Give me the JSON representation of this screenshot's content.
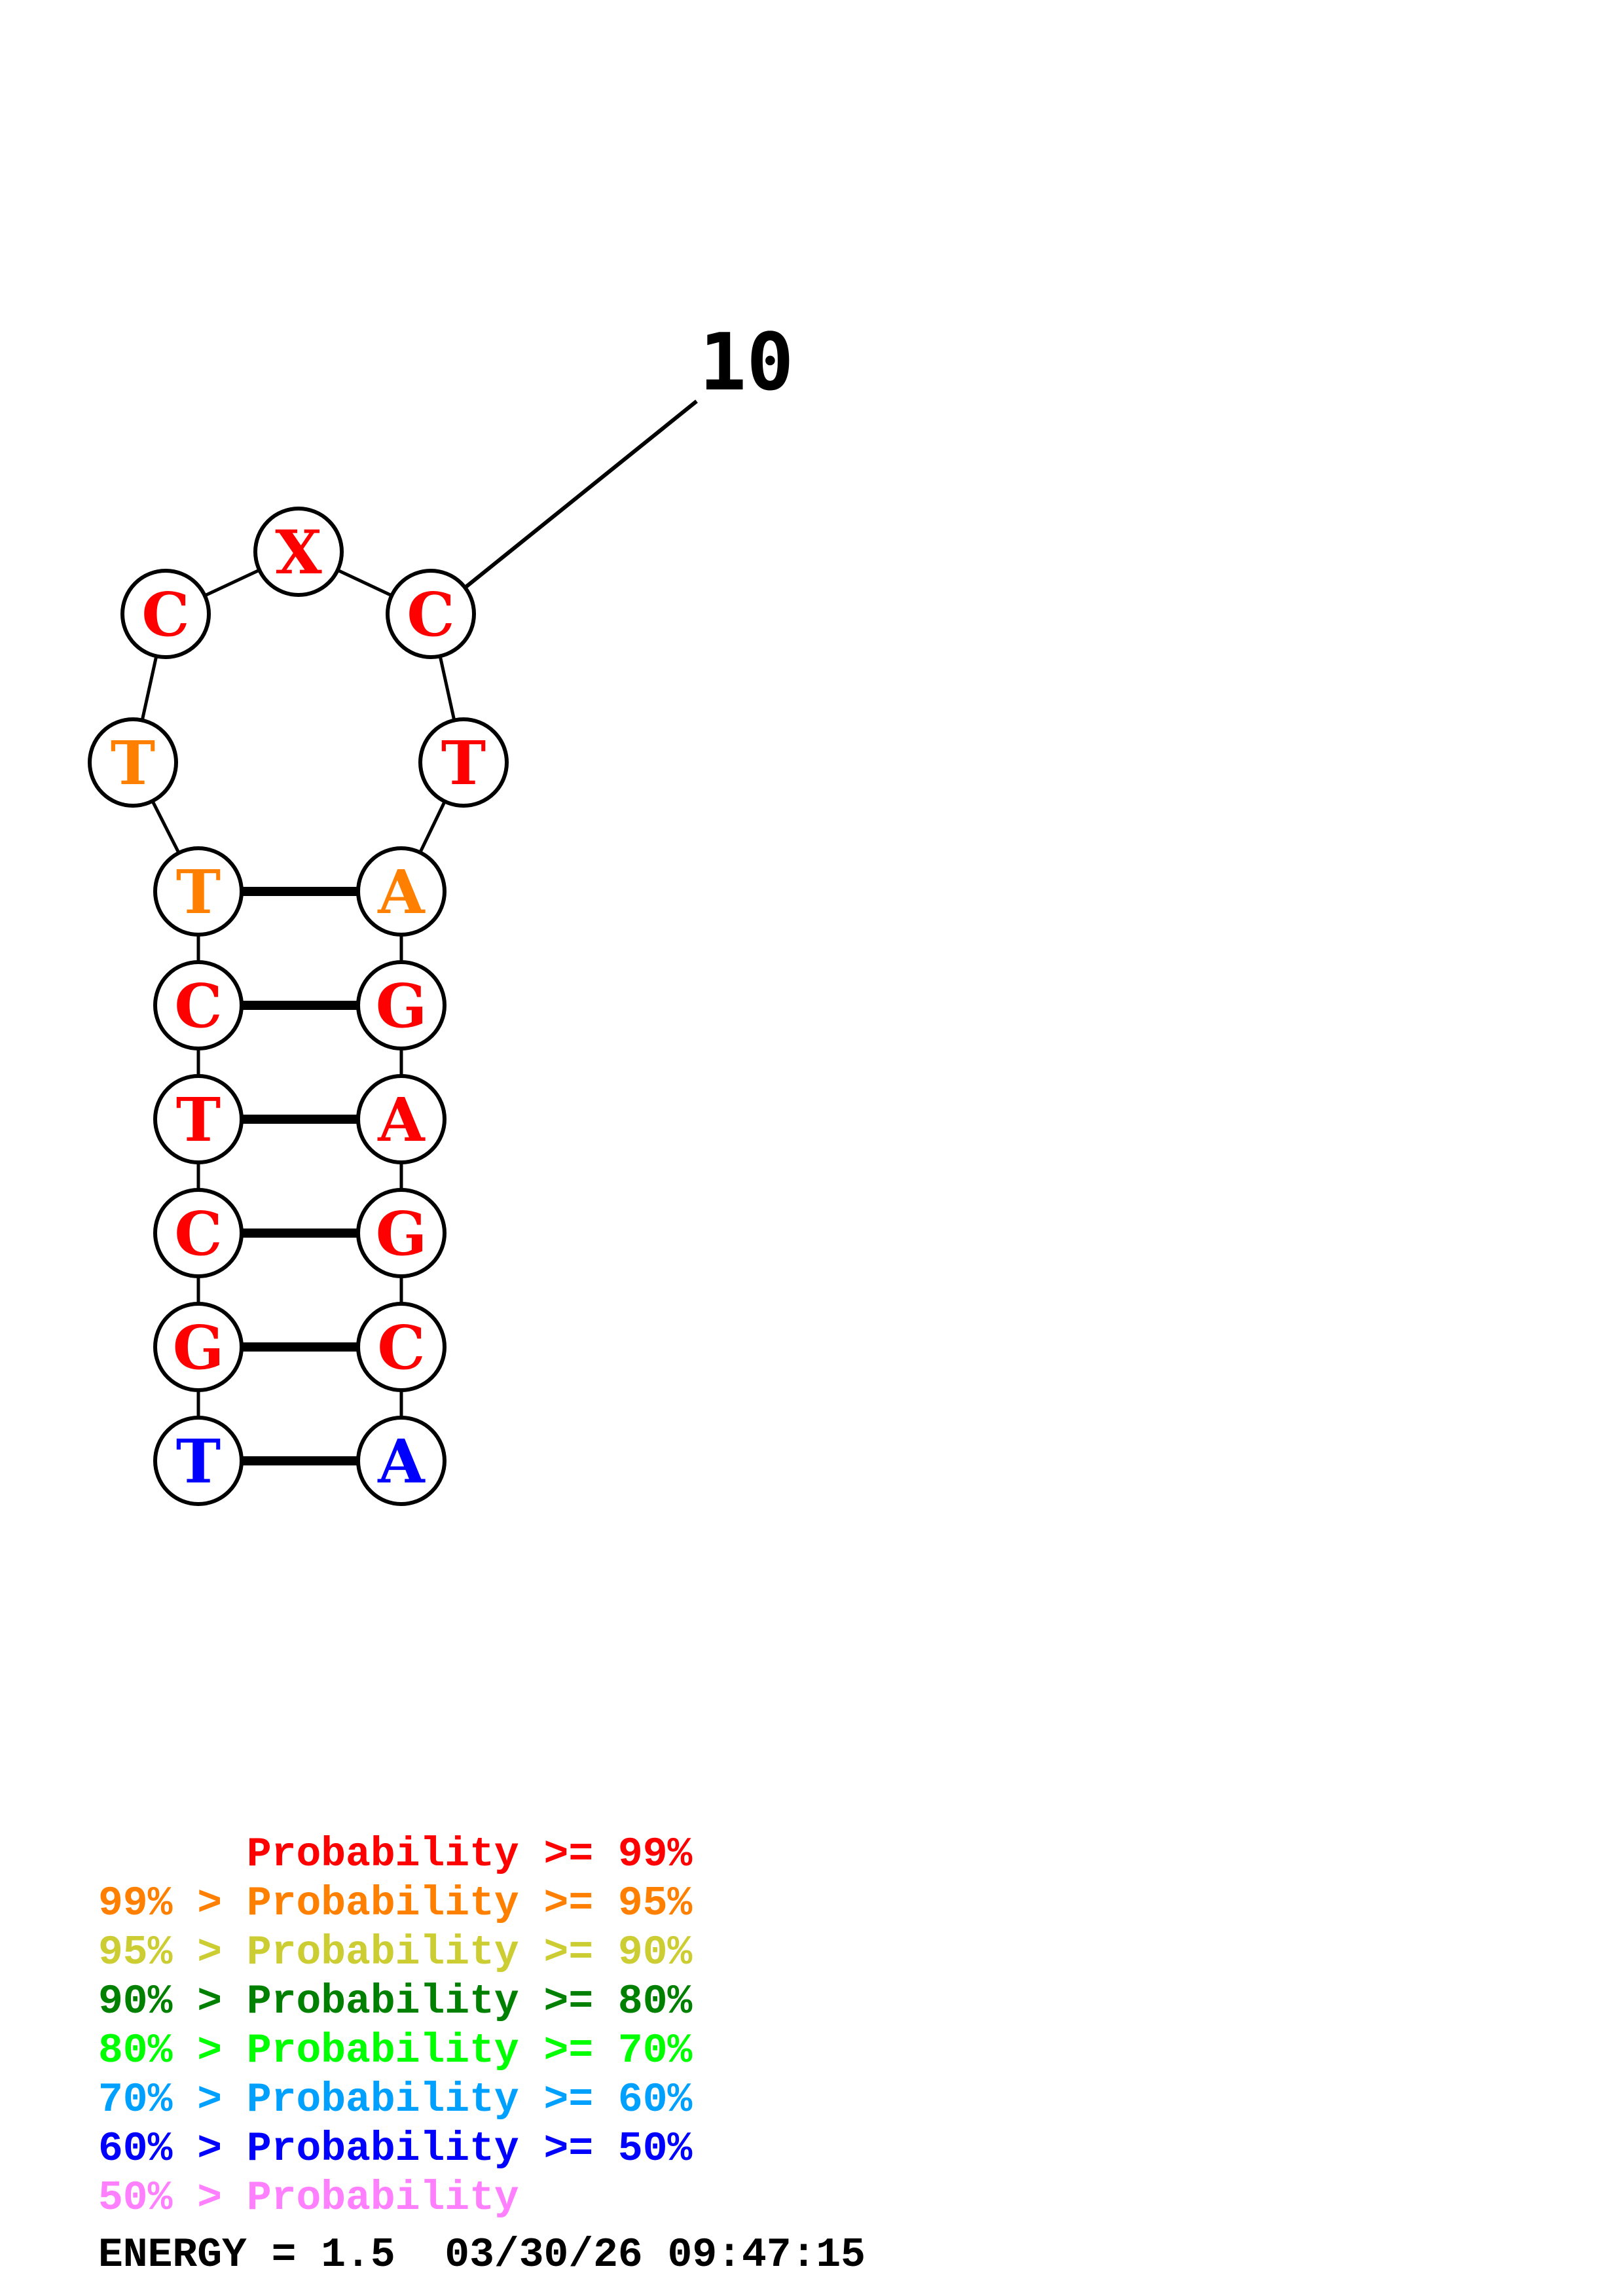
{
  "structure": {
    "index_label": "10",
    "bases": [
      {
        "letter": "T",
        "color": "#0000ff"
      },
      {
        "letter": "G",
        "color": "#ff0000"
      },
      {
        "letter": "C",
        "color": "#ff0000"
      },
      {
        "letter": "T",
        "color": "#ff0000"
      },
      {
        "letter": "C",
        "color": "#ff0000"
      },
      {
        "letter": "T",
        "color": "#ff8000"
      },
      {
        "letter": "T",
        "color": "#ff8000"
      },
      {
        "letter": "C",
        "color": "#ff0000"
      },
      {
        "letter": "X",
        "color": "#ff0000"
      },
      {
        "letter": "C",
        "color": "#ff0000"
      },
      {
        "letter": "T",
        "color": "#ff0000"
      },
      {
        "letter": "A",
        "color": "#ff8000"
      },
      {
        "letter": "G",
        "color": "#ff0000"
      },
      {
        "letter": "A",
        "color": "#ff0000"
      },
      {
        "letter": "G",
        "color": "#ff0000"
      },
      {
        "letter": "C",
        "color": "#ff0000"
      },
      {
        "letter": "A",
        "color": "#0000ff"
      }
    ],
    "pairs": [
      [
        0,
        16
      ],
      [
        1,
        15
      ],
      [
        2,
        14
      ],
      [
        3,
        13
      ],
      [
        4,
        12
      ],
      [
        5,
        11
      ]
    ]
  },
  "legend": {
    "lines": [
      {
        "prefix": "",
        "label": "Probability",
        "suffix": ">= 99%",
        "color": "#ff0000"
      },
      {
        "prefix": "99% >",
        "label": "Probability",
        "suffix": ">= 95%",
        "color": "#ff8000"
      },
      {
        "prefix": "95% >",
        "label": "Probability",
        "suffix": ">= 90%",
        "color": "#cccc33"
      },
      {
        "prefix": "90% >",
        "label": "Probability",
        "suffix": ">= 80%",
        "color": "#008000"
      },
      {
        "prefix": "80% >",
        "label": "Probability",
        "suffix": ">= 70%",
        "color": "#00ff00"
      },
      {
        "prefix": "70% >",
        "label": "Probability",
        "suffix": ">= 60%",
        "color": "#00a0ff"
      },
      {
        "prefix": "60% >",
        "label": "Probability",
        "suffix": ">= 50%",
        "color": "#0000ff"
      },
      {
        "prefix": "50% >",
        "label": "Probability",
        "suffix": "",
        "color": "#ff80ff"
      }
    ],
    "energy_line": "ENERGY = 1.5  03/30/26 09:47:15"
  }
}
